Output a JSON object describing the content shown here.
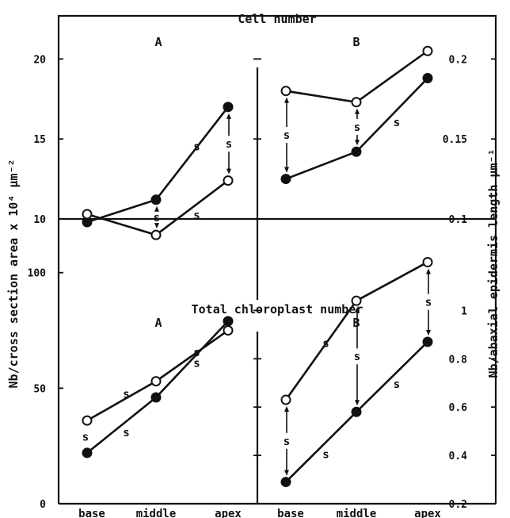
{
  "y_axis_left_label": "Nb/cross section area x 10⁴ µm⁻²",
  "y_axis_right_label": "Nb/abaxial epidermis length µm⁻¹",
  "chart_data": [
    {
      "type": "line",
      "section": "Cell number",
      "panel": "A",
      "categories": [
        "base",
        "middle",
        "apex"
      ],
      "ylim": [
        10,
        22
      ],
      "yticks": [
        10,
        15,
        20
      ],
      "series": [
        {
          "marker": "filled",
          "values": [
            9.8,
            11.2,
            17.0
          ]
        },
        {
          "marker": "open",
          "values": [
            10.3,
            9.0,
            12.4
          ]
        }
      ],
      "annotations": [
        {
          "text": "s",
          "category": "middle",
          "kind": "arrow"
        },
        {
          "text": "s",
          "category": "apex",
          "kind": "arrow"
        },
        {
          "text": "s",
          "between": [
            "middle",
            "apex"
          ],
          "series": 0
        },
        {
          "text": "s",
          "between": [
            "middle",
            "apex"
          ],
          "series": 1
        }
      ]
    },
    {
      "type": "line",
      "section": "Cell number",
      "panel": "B",
      "categories": [
        "base",
        "middle",
        "apex"
      ],
      "ylim": [
        0.1,
        0.22
      ],
      "yticks": [
        0.1,
        0.15,
        0.2
      ],
      "series": [
        {
          "marker": "filled",
          "values": [
            0.125,
            0.142,
            0.188
          ]
        },
        {
          "marker": "open",
          "values": [
            0.18,
            0.173,
            0.205
          ]
        }
      ],
      "annotations": [
        {
          "text": "s",
          "category": "base",
          "kind": "arrow"
        },
        {
          "text": "s",
          "category": "middle",
          "kind": "arrow"
        },
        {
          "text": "s",
          "between": [
            "middle",
            "apex"
          ],
          "series": 0
        }
      ]
    },
    {
      "type": "line",
      "section": "Total chloroplast number",
      "panel": "A",
      "categories": [
        "base",
        "middle",
        "apex"
      ],
      "ylim": [
        0,
        115
      ],
      "yticks": [
        0,
        50,
        100
      ],
      "series": [
        {
          "marker": "filled",
          "values": [
            22,
            46,
            79
          ]
        },
        {
          "marker": "open",
          "values": [
            36,
            53,
            75
          ]
        }
      ],
      "annotations": [
        {
          "text": "s",
          "category": "base",
          "kind": "label"
        },
        {
          "text": "s",
          "between": [
            "base",
            "middle"
          ],
          "series": 0
        },
        {
          "text": "s",
          "between": [
            "base",
            "middle"
          ],
          "series": 1
        },
        {
          "text": "s",
          "between": [
            "middle",
            "apex"
          ],
          "series": 0
        },
        {
          "text": "s",
          "between": [
            "middle",
            "apex"
          ],
          "series": 1
        }
      ]
    },
    {
      "type": "line",
      "section": "Total chloroplast number",
      "panel": "B",
      "categories": [
        "base",
        "middle",
        "apex"
      ],
      "ylim": [
        0.2,
        1.3
      ],
      "yticks": [
        0.2,
        0.4,
        0.6,
        0.8,
        1
      ],
      "series": [
        {
          "marker": "filled",
          "values": [
            0.29,
            0.58,
            0.87
          ]
        },
        {
          "marker": "open",
          "values": [
            0.63,
            1.04,
            1.2
          ]
        }
      ],
      "annotations": [
        {
          "text": "s",
          "category": "base",
          "kind": "arrow"
        },
        {
          "text": "s",
          "category": "middle",
          "kind": "arrow"
        },
        {
          "text": "s",
          "category": "apex",
          "kind": "arrow"
        },
        {
          "text": "s",
          "between": [
            "base",
            "middle"
          ],
          "series": 0
        },
        {
          "text": "s",
          "between": [
            "base",
            "middle"
          ],
          "series": 1
        },
        {
          "text": "s",
          "between": [
            "middle",
            "apex"
          ],
          "series": 0
        }
      ]
    }
  ]
}
